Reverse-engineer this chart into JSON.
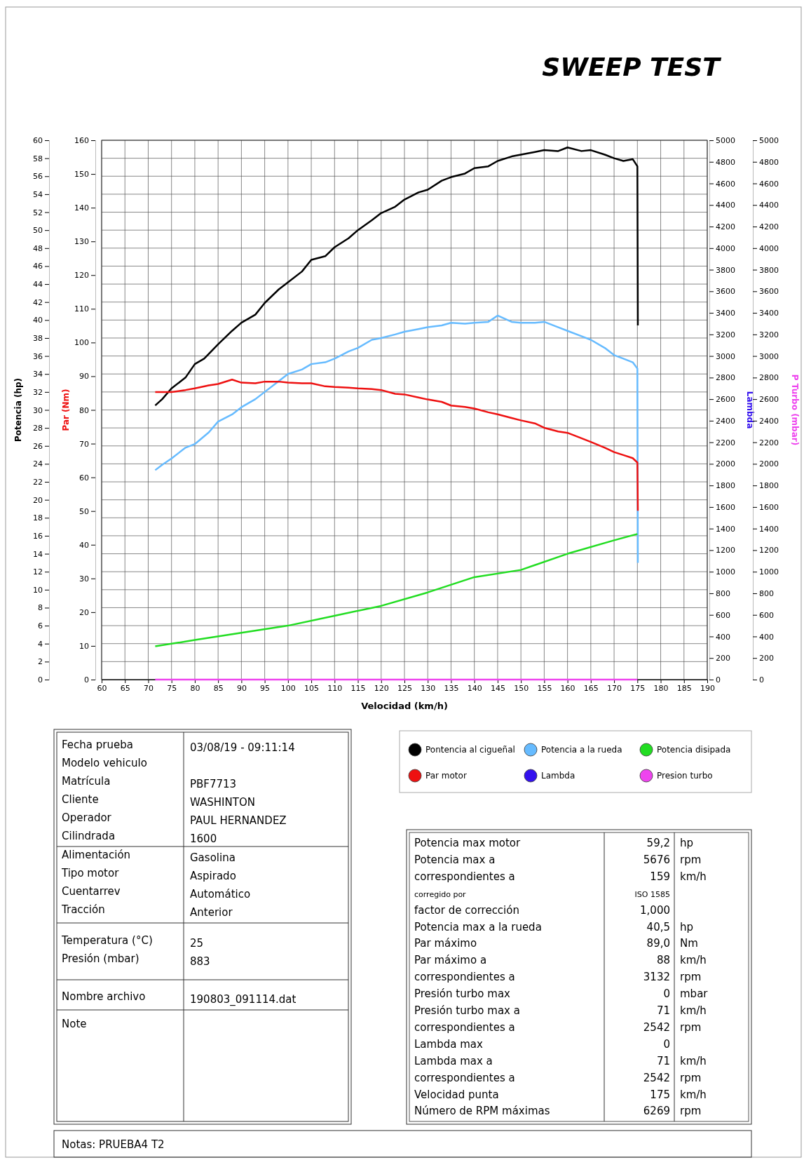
{
  "chart_data": [
    {
      "type": "line",
      "title": "SWEEP TEST",
      "xlabel": "Velocidad (km/h)",
      "ylabel": "Potencia (hp)",
      "y2label": "Par (Nm)",
      "y3label": "Lambda",
      "annotations": [
        "P Turbo (mbar)",
        "0",
        "200",
        "400",
        "600",
        "800",
        "1000",
        "1200",
        "1400",
        "1600",
        "1800",
        "2000",
        "2200",
        "2400",
        "2600",
        "2800",
        "3000",
        "3200",
        "3400",
        "3600",
        "3800",
        "4000",
        "4200",
        "4400",
        "4600",
        "4800",
        "5000"
      ],
      "xlim": [
        60,
        190
      ],
      "xticks": [
        60,
        65,
        70,
        75,
        80,
        85,
        90,
        95,
        100,
        105,
        110,
        115,
        120,
        125,
        130,
        135,
        140,
        145,
        150,
        155,
        160,
        165,
        170,
        175,
        180,
        185,
        190
      ],
      "ylim": [
        0,
        60
      ],
      "yticks": [
        0,
        2,
        4,
        6,
        8,
        10,
        12,
        14,
        16,
        18,
        20,
        22,
        24,
        26,
        28,
        30,
        32,
        34,
        36,
        38,
        40,
        42,
        44,
        46,
        48,
        50,
        52,
        54,
        56,
        58,
        60
      ],
      "y2lim": [
        0,
        160
      ],
      "y2ticks": [
        0,
        10,
        20,
        30,
        40,
        50,
        60,
        70,
        80,
        90,
        100,
        110,
        120,
        130,
        140,
        150,
        160
      ],
      "y3lim": [
        0,
        5000
      ],
      "y3ticks": [
        0,
        200,
        400,
        600,
        800,
        1000,
        1200,
        1400,
        1600,
        1800,
        2000,
        2200,
        2400,
        2600,
        2800,
        3000,
        3200,
        3400,
        3600,
        3800,
        4000,
        4200,
        4400,
        4600,
        4800,
        5000
      ],
      "grid": true,
      "legend": "bottom",
      "series": [
        {
          "name": "Pontencia al cigueñal",
          "color": "#000000",
          "x": [
            71.5,
            73,
            75,
            78,
            80,
            82,
            85,
            88,
            90,
            93,
            95,
            98,
            100,
            103,
            105,
            108,
            110,
            113,
            115,
            118,
            120,
            123,
            125,
            128,
            130,
            133,
            135,
            138,
            140,
            143,
            145,
            148,
            150,
            153,
            155,
            158,
            160,
            163,
            165,
            168,
            170,
            172,
            174,
            175,
            175.1
          ],
          "values": [
            30.5,
            31.2,
            32.4,
            33.6,
            35.1,
            35.7,
            37.3,
            38.8,
            39.7,
            40.6,
            41.9,
            43.4,
            44.2,
            45.4,
            46.7,
            47.1,
            48.1,
            49.1,
            50.0,
            51.1,
            51.9,
            52.6,
            53.4,
            54.2,
            54.5,
            55.5,
            55.9,
            56.3,
            56.9,
            57.1,
            57.7,
            58.2,
            58.4,
            58.7,
            58.9,
            58.8,
            59.2,
            58.8,
            58.9,
            58.4,
            58.0,
            57.7,
            57.9,
            57.1,
            39.4
          ]
        },
        {
          "name": "Potencia a la rueda",
          "color": "#66bbff",
          "x": [
            71.5,
            73,
            75,
            78,
            80,
            83,
            85,
            88,
            90,
            93,
            95,
            98,
            100,
            103,
            105,
            108,
            110,
            113,
            115,
            118,
            120,
            123,
            125,
            128,
            130,
            133,
            135,
            138,
            140,
            143,
            145,
            148,
            150,
            153,
            155,
            158,
            160,
            163,
            165,
            168,
            170,
            172,
            174,
            175,
            175.1
          ],
          "values": [
            23.3,
            23.9,
            24.6,
            25.8,
            26.2,
            27.5,
            28.7,
            29.5,
            30.3,
            31.2,
            32.0,
            33.2,
            34.0,
            34.5,
            35.1,
            35.3,
            35.7,
            36.5,
            36.9,
            37.8,
            38.0,
            38.4,
            38.7,
            39.0,
            39.2,
            39.4,
            39.7,
            39.6,
            39.7,
            39.8,
            40.5,
            39.8,
            39.7,
            39.7,
            39.8,
            39.2,
            38.8,
            38.2,
            37.8,
            36.9,
            36.1,
            35.7,
            35.3,
            34.6,
            13.0
          ]
        },
        {
          "name": "Potencia disipada",
          "color": "#22dd22",
          "x": [
            71.5,
            80,
            90,
            100,
            110,
            120,
            130,
            140,
            150,
            160,
            170,
            175
          ],
          "values": [
            3.7,
            4.4,
            5.2,
            6.0,
            7.1,
            8.2,
            9.7,
            11.4,
            12.2,
            14.0,
            15.5,
            16.2
          ]
        },
        {
          "name": "Par motor",
          "color": "#ee1111",
          "axis": "y2",
          "x": [
            71.5,
            75,
            78,
            80,
            83,
            85,
            88,
            90,
            93,
            95,
            98,
            100,
            103,
            105,
            108,
            110,
            113,
            115,
            118,
            120,
            123,
            125,
            128,
            130,
            133,
            135,
            138,
            140,
            143,
            145,
            148,
            150,
            153,
            155,
            158,
            160,
            163,
            165,
            168,
            170,
            172,
            174,
            175,
            175.1
          ],
          "values": [
            85.3,
            85.3,
            85.9,
            86.4,
            87.3,
            87.7,
            89.0,
            88.1,
            87.9,
            88.4,
            88.4,
            88.1,
            87.9,
            87.9,
            87.0,
            86.8,
            86.6,
            86.4,
            86.2,
            85.9,
            84.8,
            84.6,
            83.7,
            83.1,
            82.4,
            81.3,
            80.9,
            80.4,
            79.3,
            78.7,
            77.6,
            76.9,
            76.0,
            74.7,
            73.6,
            73.2,
            71.6,
            70.5,
            68.8,
            67.5,
            66.6,
            65.7,
            64.4,
            50.1
          ]
        },
        {
          "name": "Presion turbo",
          "color": "#ee44ee",
          "axis": "y3",
          "x": [
            71.5,
            175
          ],
          "values": [
            0,
            0
          ]
        },
        {
          "name": "Lambda",
          "color": "#3311ee",
          "axis": "y3"
        }
      ]
    },
    {
      "type": "other",
      "annotations": [
        "Fecha prueba",
        "03/08/19 - 09:11:14",
        "Modelo vehiculo",
        "Matrícula",
        "PBF7713",
        "Cliente",
        "WASHINTON",
        "Operador",
        "PAUL HERNANDEZ",
        "Cilindrada",
        "1600",
        "Alimentación",
        "Gasolina",
        "Tipo motor",
        "Aspirado",
        "Cuentarrev",
        "Automático",
        "Tracción",
        "Anterior",
        "Temperatura (°C)",
        "25",
        "Presión (mbar)",
        "883",
        "Nombre archivo",
        "190803_091114.dat",
        "Note",
        "Notas:  PRUEBA4 T2"
      ]
    },
    {
      "type": "other",
      "annotations": [
        "Potencia max motor",
        "59,2",
        "hp",
        "Potencia max a",
        "5676",
        "rpm",
        "correspondientes a",
        "159",
        "km/h",
        "corregido por",
        "ISO 1585",
        "factor de corrección",
        "1,000",
        "Potencia max a la rueda",
        "40,5",
        "hp",
        "Par máximo",
        "89,0",
        "Nm",
        "Par máximo a",
        "88",
        "km/h",
        "correspondientes a",
        "3132",
        "rpm",
        "Presión turbo max",
        "0",
        "mbar",
        "Presión turbo max a",
        "71",
        "km/h",
        "correspondientes a",
        "2542",
        "rpm",
        "Lambda max",
        "0",
        "Lambda max a",
        "71",
        "km/h",
        "correspondientes a",
        "2542",
        "rpm",
        "Velocidad punta",
        "175",
        "km/h",
        "Número de RPM máximas",
        "6269",
        "rpm"
      ]
    }
  ]
}
